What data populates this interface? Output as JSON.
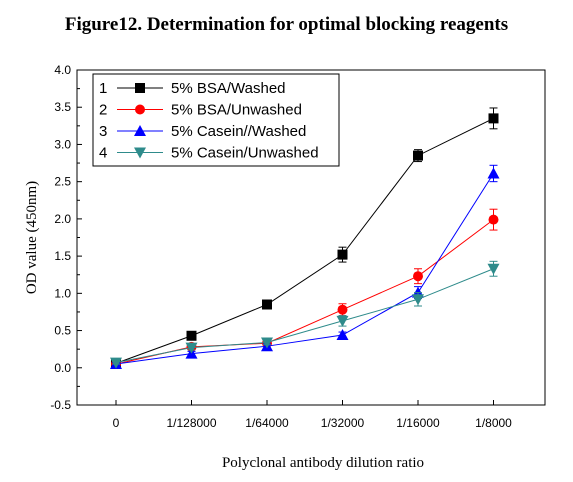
{
  "figure_title": "Figure12. Determination for optimal blocking reagents",
  "chart_data": {
    "type": "line",
    "title": "Figure12. Determination for optimal blocking reagents",
    "xlabel": "Polyclonal antibody dilution ratio",
    "ylabel": "OD value (450nm)",
    "categories": [
      "0",
      "1/128000",
      "1/64000",
      "1/32000",
      "1/16000",
      "1/8000"
    ],
    "ylim": [
      -0.5,
      4.0
    ],
    "yticks": [
      -0.5,
      0.0,
      0.5,
      1.0,
      1.5,
      2.0,
      2.5,
      3.0,
      3.5,
      4.0
    ],
    "ytick_labels": [
      "-0.5",
      "0.0",
      "0.5",
      "1.0",
      "1.5",
      "2.0",
      "2.5",
      "3.0",
      "3.5",
      "4.0"
    ],
    "legend_position": "top-left",
    "grid": false,
    "series": [
      {
        "index": "1",
        "name": "5% BSA/Washed",
        "marker": "square",
        "color": "#000000",
        "values": [
          0.06,
          0.43,
          0.85,
          1.52,
          2.85,
          3.35
        ],
        "errors": [
          0.02,
          0.03,
          0.06,
          0.1,
          0.08,
          0.14
        ]
      },
      {
        "index": "2",
        "name": "5% BSA/Unwashed",
        "marker": "circle",
        "color": "#ff0000",
        "values": [
          0.05,
          0.28,
          0.33,
          0.78,
          1.23,
          1.99
        ],
        "errors": [
          0.02,
          0.03,
          0.03,
          0.08,
          0.1,
          0.14
        ]
      },
      {
        "index": "3",
        "name": "5% Casein//Washed",
        "marker": "triangle-up",
        "color": "#0000ff",
        "values": [
          0.05,
          0.19,
          0.29,
          0.44,
          1.01,
          2.61
        ],
        "errors": [
          0.02,
          0.03,
          0.03,
          0.04,
          0.08,
          0.11
        ]
      },
      {
        "index": "4",
        "name": "5% Casein/Unwashed",
        "marker": "triangle-down",
        "color": "#2e8b8b",
        "values": [
          0.07,
          0.27,
          0.34,
          0.63,
          0.92,
          1.33
        ],
        "errors": [
          0.02,
          0.03,
          0.03,
          0.07,
          0.09,
          0.1
        ]
      }
    ]
  }
}
